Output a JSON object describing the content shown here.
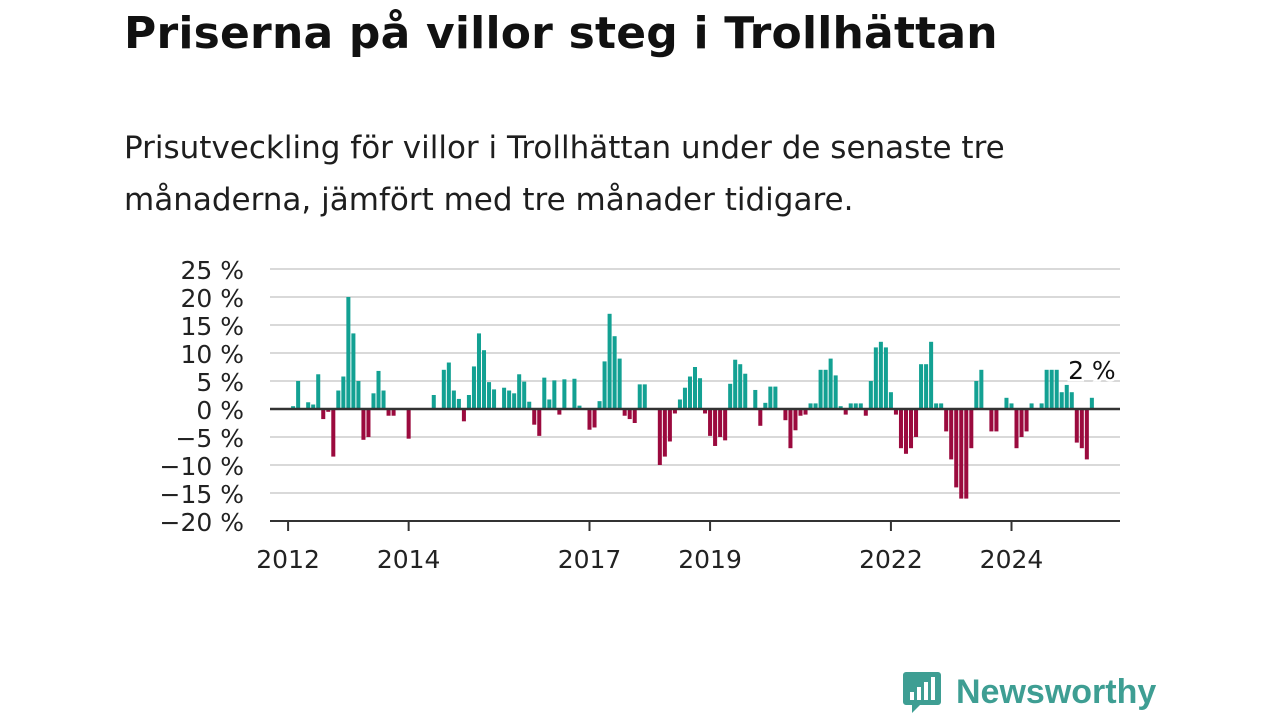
{
  "title": "Priserna på villor steg i Trollhättan",
  "subtitle": "Prisutveckling för villor i Trollhättan under de senaste tre månaderna, jämfört med tre månader tidigare.",
  "brand": {
    "name": "Newsworthy",
    "logo_icon": "bar-chart-speech-bubble-icon"
  },
  "colors": {
    "positive": "#13a193",
    "negative": "#9b0a3e",
    "grid": "#d9d9d9",
    "axis": "#333333",
    "brand": "#3e9e93"
  },
  "chart_data": {
    "type": "bar",
    "ylim": [
      -20,
      25
    ],
    "yticks": [
      25,
      20,
      15,
      10,
      5,
      0,
      -5,
      -10,
      -15,
      -20
    ],
    "ytick_labels": [
      "25 %",
      "20 %",
      "15 %",
      "10 %",
      "5 %",
      "0 %",
      "−5 %",
      "−10 %",
      "−15 %",
      "−20 %"
    ],
    "xlim": [
      2011.7,
      2025.8
    ],
    "xtick_labels": [
      {
        "x": 2012,
        "label": "2012"
      },
      {
        "x": 2014,
        "label": "2014"
      },
      {
        "x": 2017,
        "label": "2017"
      },
      {
        "x": 2019,
        "label": "2019"
      },
      {
        "x": 2022,
        "label": "2022"
      },
      {
        "x": 2024,
        "label": "2024"
      }
    ],
    "start_year": 2012,
    "values": [
      0,
      0.5,
      5,
      0,
      1.2,
      0.8,
      6.2,
      -1.8,
      -0.5,
      -8.5,
      3.3,
      5.8,
      20,
      13.5,
      5,
      -5.5,
      -5,
      2.8,
      6.8,
      3.3,
      -1.2,
      -1.2,
      0,
      0,
      -5.3,
      0,
      0,
      0,
      0,
      2.5,
      0,
      7,
      8.3,
      3.3,
      1.8,
      -2.2,
      2.5,
      7.6,
      13.5,
      10.5,
      4.8,
      3.5,
      0,
      3.8,
      3.3,
      2.8,
      6.2,
      4.9,
      1.3,
      -2.8,
      -4.8,
      5.6,
      1.7,
      5.1,
      -1,
      5.3,
      0,
      5.4,
      0.6,
      0,
      -3.7,
      -3.3,
      1.4,
      8.5,
      17,
      13,
      9,
      -1.2,
      -1.8,
      -2.5,
      4.4,
      4.4,
      0,
      0,
      -10,
      -8.5,
      -5.8,
      -0.8,
      1.7,
      3.8,
      5.8,
      7.5,
      5.5,
      -0.8,
      -4.8,
      -6.6,
      -5,
      -5.6,
      4.5,
      8.8,
      8,
      6.3,
      0,
      3.4,
      -3,
      1.1,
      4,
      4,
      0,
      -2,
      -7,
      -3.8,
      -1.2,
      -1,
      1,
      1,
      7,
      7,
      9,
      6,
      0.5,
      -1,
      1,
      1,
      1,
      -1.2,
      5,
      11,
      12,
      11,
      3,
      -1,
      -7,
      -8,
      -7,
      -5,
      8,
      8,
      12,
      1,
      1,
      -4,
      -9,
      -14,
      -16,
      -16,
      -7,
      5,
      7,
      0,
      -4,
      -4,
      0,
      2,
      1,
      -7,
      -5,
      -4,
      1,
      0,
      1,
      7,
      7,
      7,
      3,
      4.3,
      3,
      -6,
      -7,
      -9,
      2
    ],
    "last_value_label": "2 %"
  }
}
